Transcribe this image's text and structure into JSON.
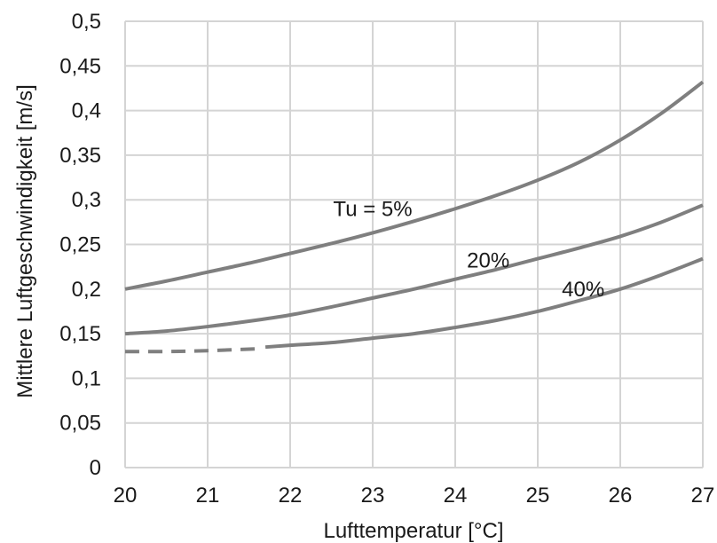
{
  "chart_data": {
    "type": "line",
    "xlabel": "Lufttemperatur [°C]",
    "ylabel": "Mittlere Luftgeschwindigkeit [m/s]",
    "xlim": [
      20,
      27
    ],
    "ylim": [
      0,
      0.5
    ],
    "x_ticks": [
      "20",
      "21",
      "22",
      "23",
      "24",
      "25",
      "26",
      "27"
    ],
    "y_ticks": [
      "0",
      "0,05",
      "0,1",
      "0,15",
      "0,2",
      "0,25",
      "0,3",
      "0,35",
      "0,4",
      "0,45",
      "0,5"
    ],
    "grid": true,
    "line_color": "#7f7f7f",
    "series": [
      {
        "name": "Tu = 5%",
        "x": [
          20,
          20.5,
          21,
          21.5,
          22,
          22.5,
          23,
          23.5,
          24,
          24.5,
          25,
          25.5,
          26,
          26.5,
          27
        ],
        "y": [
          0.2,
          0.209,
          0.219,
          0.229,
          0.24,
          0.251,
          0.263,
          0.276,
          0.29,
          0.305,
          0.322,
          0.342,
          0.367,
          0.397,
          0.432
        ]
      },
      {
        "name": "20%",
        "x": [
          20,
          20.5,
          21,
          21.5,
          22,
          22.5,
          23,
          23.5,
          24,
          24.5,
          25,
          25.5,
          26,
          26.5,
          27
        ],
        "y": [
          0.15,
          0.153,
          0.158,
          0.164,
          0.171,
          0.18,
          0.19,
          0.2,
          0.211,
          0.222,
          0.234,
          0.246,
          0.259,
          0.275,
          0.294
        ]
      },
      {
        "name": "40%",
        "segments": [
          {
            "style": "dashed",
            "x": [
              20,
              20.5,
              21,
              21.6
            ],
            "y": [
              0.13,
              0.13,
              0.131,
              0.133
            ]
          },
          {
            "style": "solid",
            "x": [
              21.7,
              22,
              22.5,
              23,
              23.5,
              24,
              24.5,
              25,
              25.5,
              26,
              26.5,
              27
            ],
            "y": [
              0.135,
              0.137,
              0.14,
              0.145,
              0.15,
              0.157,
              0.165,
              0.175,
              0.187,
              0.2,
              0.216,
              0.234
            ]
          }
        ]
      }
    ],
    "annotations": [
      {
        "text": "Tu = 5%",
        "x": 23.0,
        "y": 0.29
      },
      {
        "text": "20%",
        "x": 24.4,
        "y": 0.232
      },
      {
        "text": "40%",
        "x": 25.55,
        "y": 0.2
      }
    ]
  }
}
